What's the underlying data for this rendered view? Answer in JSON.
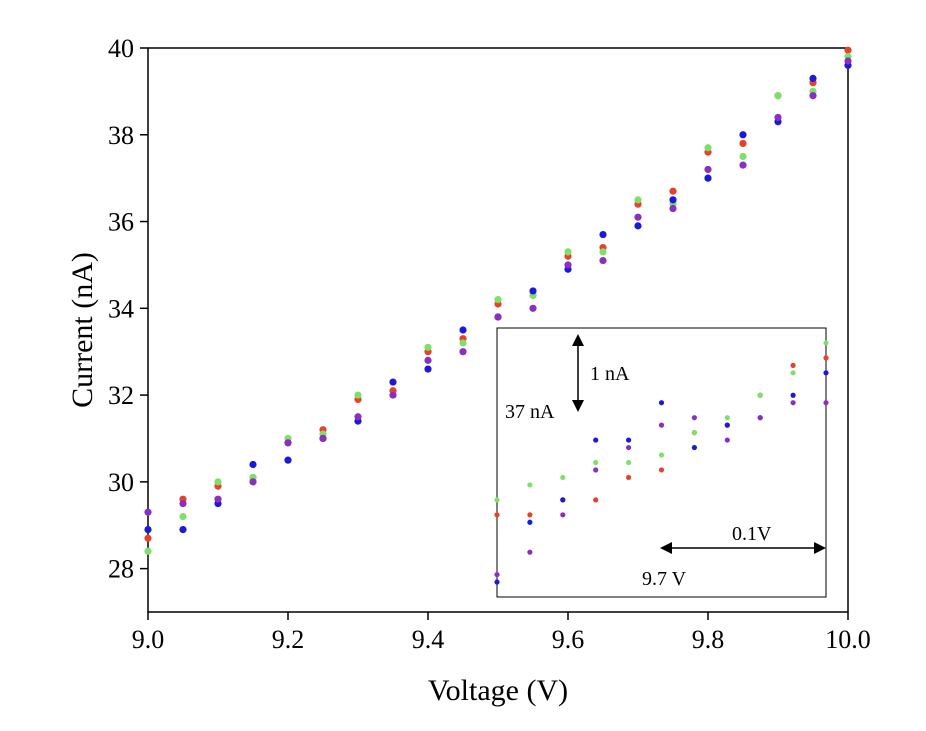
{
  "chart_data": [
    {
      "type": "scatter",
      "xlabel": "Voltage (V)",
      "ylabel": "Current (nA)",
      "x": [
        9.0,
        9.05,
        9.1,
        9.15,
        9.2,
        9.25,
        9.3,
        9.35,
        9.4,
        9.45,
        9.5,
        9.55,
        9.6,
        9.65,
        9.7,
        9.75,
        9.8,
        9.85,
        9.9,
        9.95,
        10.0
      ],
      "series": [
        {
          "color": "#e8412a",
          "values": [
            28.7,
            29.6,
            29.9,
            30.1,
            30.9,
            31.2,
            31.9,
            32.1,
            33.0,
            33.3,
            34.1,
            34.3,
            35.2,
            35.4,
            36.4,
            36.7,
            37.6,
            37.8,
            38.9,
            39.2,
            39.95
          ]
        },
        {
          "color": "#7ee06a",
          "values": [
            28.4,
            29.2,
            30.0,
            30.1,
            31.0,
            31.1,
            32.0,
            32.0,
            33.1,
            33.2,
            34.2,
            34.3,
            35.3,
            35.3,
            36.5,
            36.4,
            37.7,
            37.5,
            38.9,
            39.0,
            39.8
          ]
        },
        {
          "color": "#1a1ad8",
          "values": [
            28.9,
            28.9,
            29.5,
            30.4,
            30.5,
            31.0,
            31.4,
            32.3,
            32.6,
            33.5,
            33.8,
            34.4,
            34.9,
            35.7,
            35.9,
            36.5,
            37.0,
            38.0,
            38.3,
            39.3,
            39.6
          ]
        },
        {
          "color": "#8a2fbf",
          "values": [
            29.3,
            29.5,
            29.6,
            30.0,
            30.9,
            31.0,
            31.5,
            32.0,
            32.8,
            33.0,
            33.8,
            34.0,
            35.0,
            35.1,
            36.1,
            36.3,
            37.2,
            37.3,
            38.4,
            38.9,
            39.7
          ]
        }
      ],
      "xlim": [
        9.0,
        10.0
      ],
      "xticks": [
        {
          "value": 9,
          "label": "9.0"
        },
        9.2,
        9.4,
        9.6,
        9.8,
        {
          "value": 10,
          "label": "10.0"
        }
      ],
      "ylim": [
        27,
        40
      ],
      "yticks": [
        28,
        30,
        32,
        34,
        36,
        38,
        40
      ]
    },
    {
      "type": "scatter",
      "x": [
        9.5,
        9.52,
        9.54,
        9.56,
        9.58,
        9.6,
        9.62,
        9.64,
        9.66,
        9.68,
        9.7
      ],
      "series": [
        {
          "color": "#e8412a",
          "values": [
            34.3,
            34.3,
            34.5,
            34.5,
            34.8,
            34.9,
            35.4,
            35.5,
            35.9,
            36.3,
            36.4
          ]
        },
        {
          "color": "#7ee06a",
          "values": [
            34.5,
            34.7,
            34.8,
            35.0,
            35.0,
            35.1,
            35.4,
            35.6,
            35.9,
            36.2,
            36.6
          ]
        },
        {
          "color": "#1a1ad8",
          "values": [
            33.4,
            34.2,
            34.5,
            35.3,
            35.3,
            35.8,
            35.2,
            35.5,
            35.6,
            35.9,
            36.2
          ]
        },
        {
          "color": "#8a2fbf",
          "values": [
            33.5,
            33.8,
            34.3,
            34.9,
            35.2,
            35.5,
            35.6,
            35.3,
            35.6,
            35.8,
            35.8
          ]
        }
      ],
      "xlim": [
        9.5,
        9.7
      ],
      "ylim": [
        33.2,
        36.8
      ],
      "annotations": [
        "1 nA",
        "37 nA",
        "0.1V",
        "9.7 V"
      ]
    }
  ]
}
